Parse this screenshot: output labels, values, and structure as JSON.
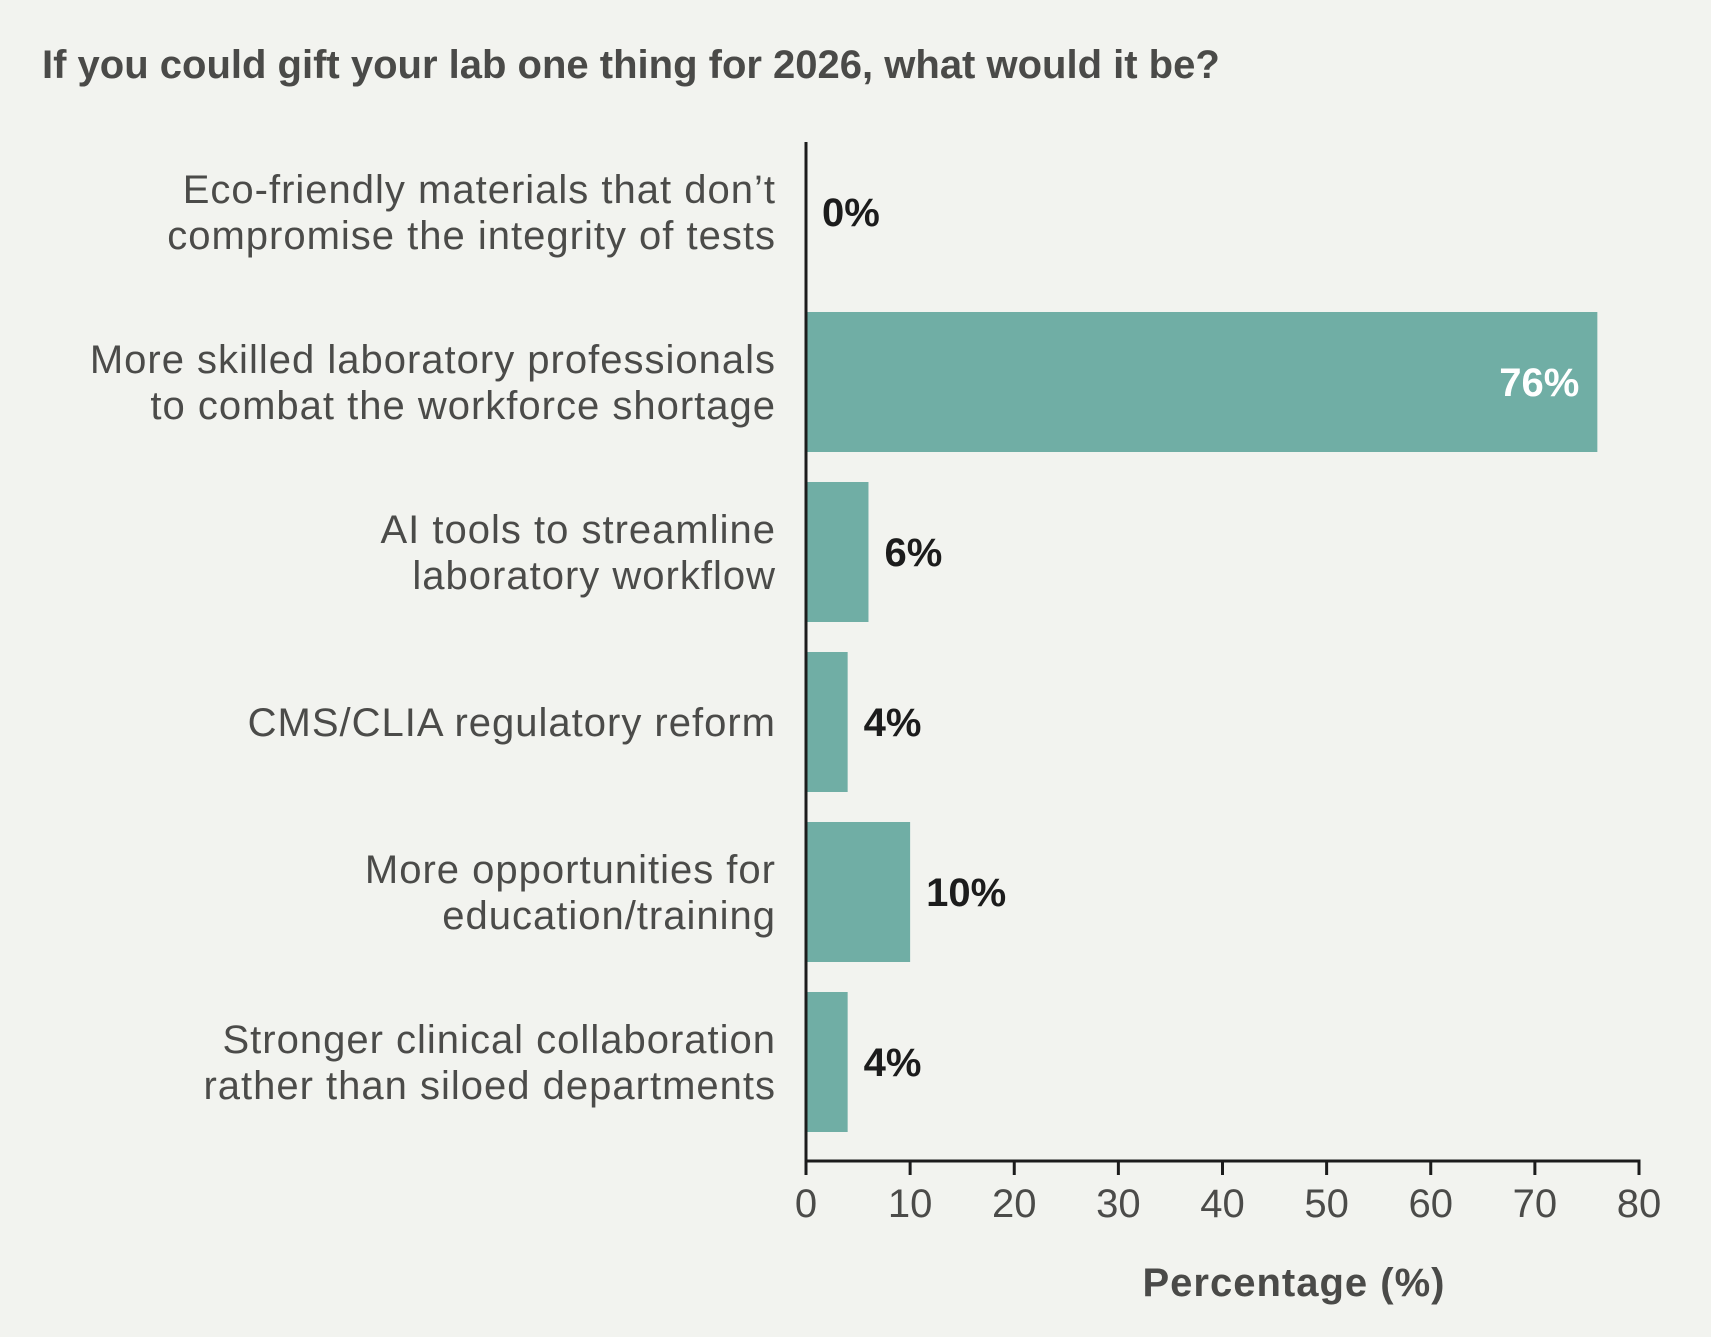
{
  "chart_data": {
    "type": "bar",
    "orientation": "horizontal",
    "title": "If you could gift your lab one thing for 2026, what would it be?",
    "xlabel": "Percentage (%)",
    "ylabel": "",
    "categories": [
      [
        "Eco-friendly materials that don’t",
        "compromise the integrity of tests"
      ],
      [
        "More skilled laboratory professionals",
        "to combat the workforce shortage"
      ],
      [
        "AI tools to streamline",
        "laboratory workflow"
      ],
      [
        "CMS/CLIA regulatory reform"
      ],
      [
        "More opportunities for",
        "education/training"
      ],
      [
        "Stronger clinical collaboration",
        "rather than siloed departments"
      ]
    ],
    "values": [
      0,
      76,
      6,
      4,
      10,
      4
    ],
    "value_labels": [
      "0%",
      "76%",
      "6%",
      "4%",
      "10%",
      "4%"
    ],
    "xlim": [
      0,
      80
    ],
    "xticks": [
      0,
      10,
      20,
      30,
      40,
      50,
      60,
      70,
      80
    ],
    "grid": false,
    "legend": "none",
    "colors": {
      "bar": "#70aea5",
      "label_outside": "#1c1c1c",
      "label_inside": "#ffffff",
      "axis": "#1c1c1c"
    }
  }
}
